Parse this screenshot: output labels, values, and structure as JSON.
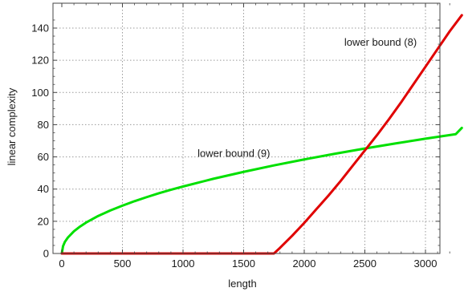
{
  "chart_data": {
    "type": "line",
    "xlabel": "length",
    "ylabel": "linear complexity",
    "xlim": [
      0,
      3300
    ],
    "ylim": [
      0,
      150
    ],
    "grid": true,
    "legend": "none",
    "x_ticks": [
      0,
      500,
      1000,
      1500,
      2000,
      2500,
      3000
    ],
    "y_ticks": [
      0,
      20,
      40,
      60,
      80,
      100,
      120,
      140
    ],
    "series": [
      {
        "name": "lower bound (9)",
        "color": "#00e000",
        "x": [
          0,
          10,
          25,
          50,
          100,
          150,
          200,
          300,
          400,
          500,
          600,
          700,
          800,
          900,
          1000,
          1250,
          1500,
          1750,
          2000,
          2250,
          2500,
          2750,
          3000,
          3250,
          3300
        ],
        "y": [
          0,
          4.5,
          7.2,
          9.9,
          13.8,
          16.7,
          19.2,
          23.3,
          26.7,
          29.7,
          32.5,
          35,
          37.4,
          39.6,
          41.6,
          46.4,
          50.7,
          54.7,
          58.4,
          61.9,
          65.2,
          68.3,
          71.3,
          74.1,
          78
        ]
      },
      {
        "name": "lower bound (8)",
        "color": "#e00000",
        "x": [
          0,
          1750,
          1800,
          1900,
          2000,
          2100,
          2200,
          2300,
          2400,
          2500,
          2600,
          2700,
          2800,
          2900,
          3000,
          3100,
          3200,
          3300
        ],
        "y": [
          0,
          0,
          3.5,
          11,
          19,
          27.5,
          36,
          45,
          54.5,
          64,
          73.5,
          83.5,
          94,
          105,
          116,
          127,
          138,
          148
        ]
      }
    ],
    "annotations": [
      {
        "text": "lower bound (8)",
        "x": 2330,
        "y": 131
      },
      {
        "text": "lower bound (9)",
        "x": 1120,
        "y": 62
      }
    ]
  }
}
